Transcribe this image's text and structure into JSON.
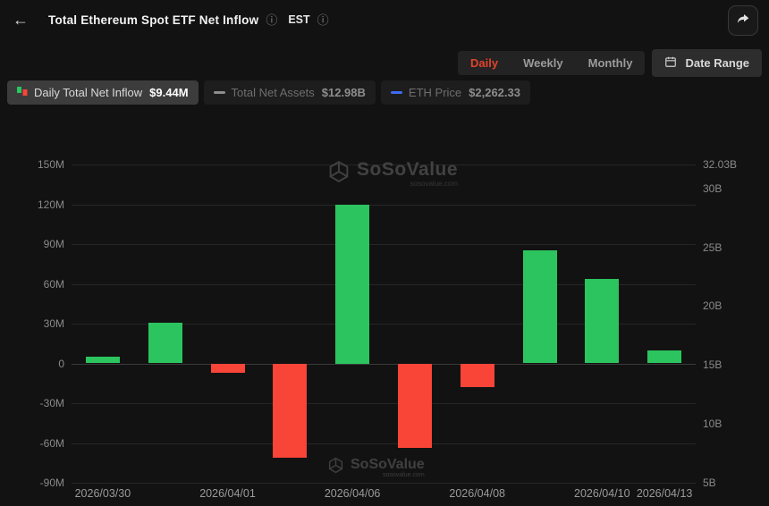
{
  "icons": {
    "back": "←",
    "info": "ⓘ"
  },
  "header": {
    "title": "Total Ethereum Spot ETF Net Inflow",
    "timezone": "EST"
  },
  "controls": {
    "tabs": [
      {
        "label": "Daily",
        "active": true
      },
      {
        "label": "Weekly",
        "active": false
      },
      {
        "label": "Monthly",
        "active": false
      }
    ],
    "date_range_label": "Date Range"
  },
  "legend": [
    {
      "label": "Daily Total Net Inflow",
      "value": "$9.44M",
      "active": true
    },
    {
      "label": "Total Net Assets",
      "value": "$12.98B",
      "active": false
    },
    {
      "label": "ETH Price",
      "value": "$2,262.33",
      "active": false
    }
  ],
  "watermark": {
    "name": "SoSoValue",
    "domain": "sosovalue.com"
  },
  "colors": {
    "accent_red": "#e0432e",
    "eth_price_blue": "#3f6af5",
    "net_assets_gray": "#8d8d8d"
  },
  "chart_data": {
    "type": "bar",
    "title": "Total Ethereum Spot ETF Net Inflow (Daily)",
    "series": [
      {
        "name": "Daily Total Net Inflow",
        "unit": "USD millions",
        "values": [
          5,
          31,
          -7,
          -71,
          120,
          -64,
          -18,
          85,
          64,
          9.44
        ]
      }
    ],
    "x_labels": [
      {
        "index": 0,
        "label": "2026/03/30"
      },
      {
        "index": 2,
        "label": "2026/04/01"
      },
      {
        "index": 4,
        "label": "2026/04/06"
      },
      {
        "index": 6,
        "label": "2026/04/08"
      },
      {
        "index": 8,
        "label": "2026/04/10"
      },
      {
        "index": 9,
        "label": "2026/04/13"
      }
    ],
    "left_axis": {
      "range": [
        -90,
        150
      ],
      "ticks": [
        {
          "v": 150,
          "label": "150M"
        },
        {
          "v": 120,
          "label": "120M"
        },
        {
          "v": 90,
          "label": "90M"
        },
        {
          "v": 60,
          "label": "60M"
        },
        {
          "v": 30,
          "label": "30M"
        },
        {
          "v": 0,
          "label": "0"
        },
        {
          "v": -30,
          "label": "-30M"
        },
        {
          "v": -60,
          "label": "-60M"
        },
        {
          "v": -90,
          "label": "-90M"
        }
      ]
    },
    "right_axis": {
      "range": [
        5,
        32.03
      ],
      "ticks": [
        {
          "v": 32.03,
          "label": "32.03B"
        },
        {
          "v": 30,
          "label": "30B"
        },
        {
          "v": 25,
          "label": "25B"
        },
        {
          "v": 20,
          "label": "20B"
        },
        {
          "v": 15,
          "label": "15B"
        },
        {
          "v": 10,
          "label": "10B"
        },
        {
          "v": 5,
          "label": "5B"
        }
      ]
    },
    "colors": {
      "positive": "#2cc45e",
      "negative": "#f94438"
    },
    "grid": true,
    "legend_position": "top-left"
  }
}
